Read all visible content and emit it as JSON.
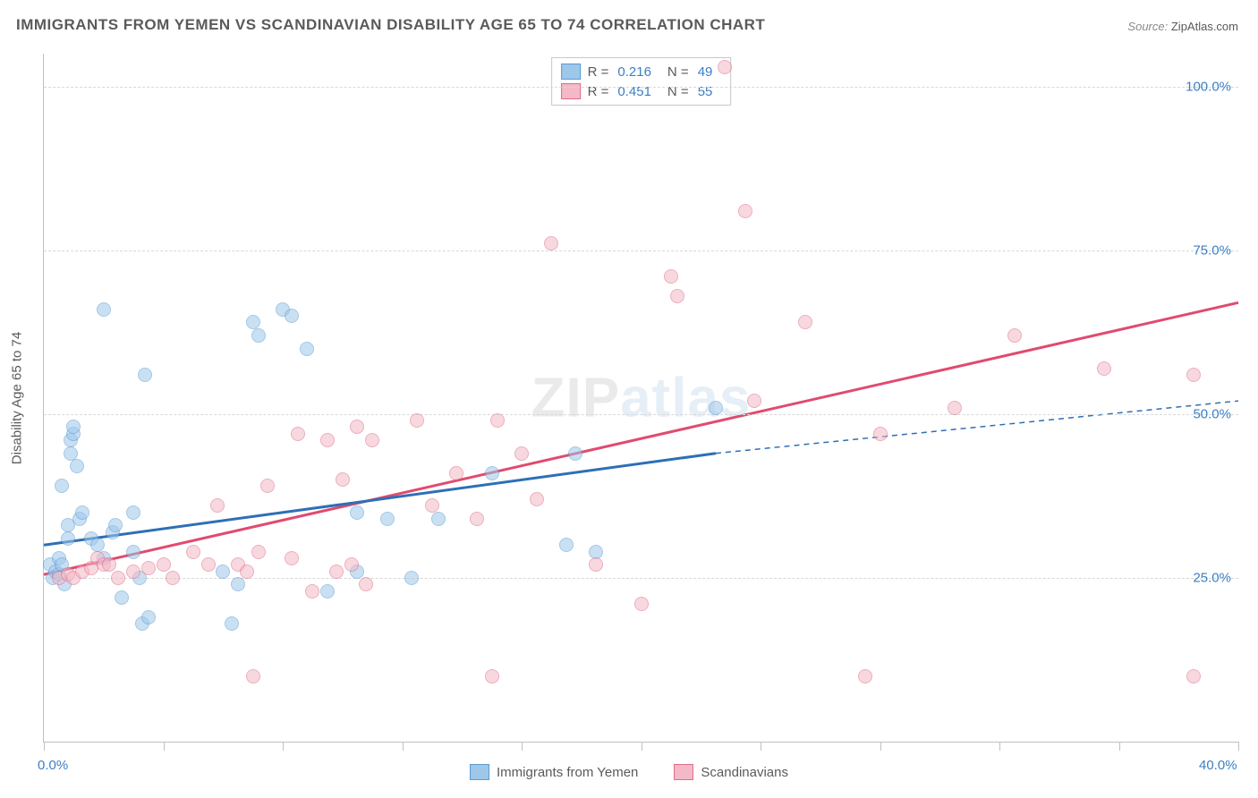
{
  "title": "IMMIGRANTS FROM YEMEN VS SCANDINAVIAN DISABILITY AGE 65 TO 74 CORRELATION CHART",
  "source_label": "Source:",
  "source_value": "ZipAtlas.com",
  "ylabel": "Disability Age 65 to 74",
  "watermark_a": "ZIP",
  "watermark_b": "atlas",
  "chart": {
    "type": "scatter",
    "xlim": [
      0,
      40
    ],
    "ylim": [
      0,
      105
    ],
    "x_min_label": "0.0%",
    "x_max_label": "40.0%",
    "y_ticks": [
      25,
      50,
      75,
      100
    ],
    "y_tick_labels": [
      "25.0%",
      "50.0%",
      "75.0%",
      "100.0%"
    ],
    "x_ticks": [
      0,
      4,
      8,
      12,
      16,
      20,
      24,
      28,
      32,
      36,
      40
    ],
    "grid_color": "#d8d8d8",
    "axis_color": "#c0c0c0",
    "background_color": "#ffffff",
    "point_radius": 8,
    "point_opacity": 0.55,
    "series": [
      {
        "name": "Immigrants from Yemen",
        "color_fill": "#9ec7ea",
        "color_stroke": "#5a9bd4",
        "R": "0.216",
        "N": "49",
        "trend": {
          "x1": 0,
          "y1": 30,
          "x2": 22.5,
          "y2": 44,
          "ext_x2": 40,
          "ext_y2": 52,
          "stroke": "#2e6fb6",
          "width": 3
        },
        "points": [
          [
            0.2,
            27
          ],
          [
            0.3,
            25
          ],
          [
            0.4,
            26
          ],
          [
            0.5,
            28
          ],
          [
            0.5,
            25.5
          ],
          [
            0.6,
            27
          ],
          [
            0.7,
            24
          ],
          [
            0.8,
            31
          ],
          [
            0.8,
            33
          ],
          [
            0.9,
            44
          ],
          [
            0.9,
            46
          ],
          [
            1.0,
            47
          ],
          [
            1.0,
            48
          ],
          [
            1.1,
            42
          ],
          [
            0.6,
            39
          ],
          [
            1.2,
            34
          ],
          [
            1.3,
            35
          ],
          [
            1.6,
            31
          ],
          [
            1.8,
            30
          ],
          [
            2.0,
            28
          ],
          [
            2.3,
            32
          ],
          [
            2.4,
            33
          ],
          [
            2.6,
            22
          ],
          [
            3.0,
            35
          ],
          [
            3.0,
            29
          ],
          [
            3.2,
            25
          ],
          [
            3.3,
            18
          ],
          [
            3.5,
            19
          ],
          [
            2.0,
            66
          ],
          [
            3.4,
            56
          ],
          [
            6.0,
            26
          ],
          [
            6.3,
            18
          ],
          [
            6.5,
            24
          ],
          [
            7.0,
            64
          ],
          [
            7.2,
            62
          ],
          [
            8.0,
            66
          ],
          [
            8.3,
            65
          ],
          [
            8.8,
            60
          ],
          [
            9.5,
            23
          ],
          [
            10.5,
            35
          ],
          [
            10.5,
            26
          ],
          [
            11.5,
            34
          ],
          [
            12.3,
            25
          ],
          [
            13.2,
            34
          ],
          [
            15.0,
            41
          ],
          [
            17.5,
            30
          ],
          [
            17.8,
            44
          ],
          [
            18.5,
            29
          ],
          [
            22.5,
            51
          ]
        ]
      },
      {
        "name": "Scandinavians",
        "color_fill": "#f4b9c6",
        "color_stroke": "#e06b87",
        "R": "0.451",
        "N": "55",
        "trend": {
          "x1": 0,
          "y1": 25.5,
          "x2": 40,
          "y2": 67,
          "stroke": "#e04b6e",
          "width": 3
        },
        "points": [
          [
            0.5,
            25
          ],
          [
            0.8,
            25.5
          ],
          [
            1.0,
            25
          ],
          [
            1.3,
            26
          ],
          [
            1.6,
            26.5
          ],
          [
            1.8,
            28
          ],
          [
            2.0,
            27
          ],
          [
            2.2,
            27
          ],
          [
            2.5,
            25
          ],
          [
            3.0,
            26
          ],
          [
            3.5,
            26.5
          ],
          [
            4.0,
            27
          ],
          [
            4.3,
            25
          ],
          [
            5.0,
            29
          ],
          [
            5.5,
            27
          ],
          [
            5.8,
            36
          ],
          [
            6.5,
            27
          ],
          [
            6.8,
            26
          ],
          [
            7.0,
            10
          ],
          [
            7.2,
            29
          ],
          [
            7.5,
            39
          ],
          [
            8.3,
            28
          ],
          [
            8.5,
            47
          ],
          [
            9.0,
            23
          ],
          [
            9.5,
            46
          ],
          [
            9.8,
            26
          ],
          [
            10.0,
            40
          ],
          [
            10.3,
            27
          ],
          [
            10.5,
            48
          ],
          [
            10.8,
            24
          ],
          [
            11.0,
            46
          ],
          [
            12.5,
            49
          ],
          [
            13.0,
            36
          ],
          [
            13.8,
            41
          ],
          [
            14.5,
            34
          ],
          [
            15.0,
            10
          ],
          [
            15.2,
            49
          ],
          [
            16.0,
            44
          ],
          [
            16.5,
            37
          ],
          [
            17.0,
            76
          ],
          [
            18.5,
            27
          ],
          [
            20.0,
            21
          ],
          [
            21.0,
            71
          ],
          [
            21.2,
            68
          ],
          [
            22.8,
            103
          ],
          [
            23.5,
            81
          ],
          [
            23.8,
            52
          ],
          [
            25.5,
            64
          ],
          [
            27.5,
            10
          ],
          [
            28.0,
            47
          ],
          [
            30.5,
            51
          ],
          [
            32.5,
            62
          ],
          [
            35.5,
            57
          ],
          [
            38.5,
            10
          ],
          [
            38.5,
            56
          ]
        ]
      }
    ]
  },
  "legend_bottom": [
    {
      "label": "Immigrants from Yemen",
      "fill": "#9ec7ea",
      "stroke": "#5a9bd4"
    },
    {
      "label": "Scandinavians",
      "fill": "#f4b9c6",
      "stroke": "#e06b87"
    }
  ]
}
